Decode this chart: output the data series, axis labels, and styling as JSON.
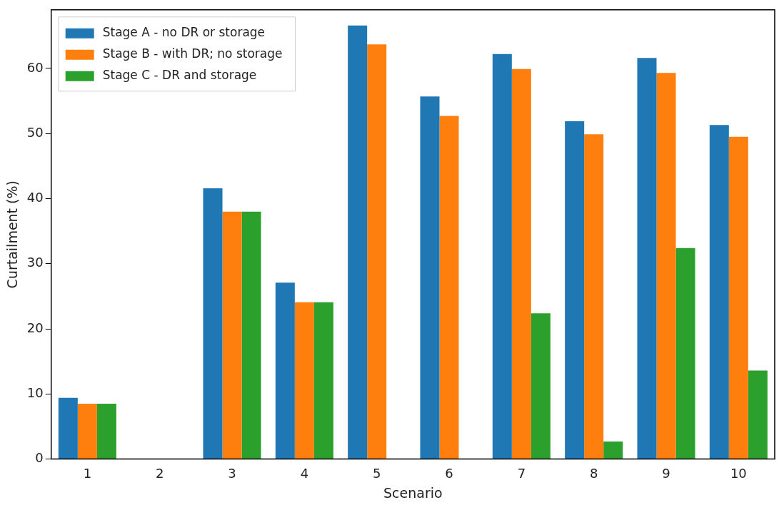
{
  "chart_data": {
    "type": "bar",
    "xlabel": "Scenario",
    "ylabel": "Curtailment (%)",
    "categories": [
      "1",
      "2",
      "3",
      "4",
      "5",
      "6",
      "7",
      "8",
      "9",
      "10"
    ],
    "series": [
      {
        "name": "Stage A - no DR or storage",
        "color": "#1f77b4",
        "values": [
          9.4,
          0,
          41.6,
          27.1,
          66.6,
          55.7,
          62.2,
          51.9,
          61.6,
          51.3
        ]
      },
      {
        "name": "Stage B - with DR; no storage",
        "color": "#ff7f0e",
        "values": [
          8.5,
          0,
          38.0,
          24.1,
          63.7,
          52.7,
          59.9,
          49.9,
          59.3,
          49.5
        ]
      },
      {
        "name": "Stage C - DR and storage",
        "color": "#2ca02c",
        "values": [
          8.5,
          0,
          38.0,
          24.1,
          0,
          0,
          22.4,
          2.7,
          32.4,
          13.6
        ]
      }
    ],
    "ylim": [
      0,
      69
    ],
    "yticks": [
      0,
      10,
      20,
      30,
      40,
      50,
      60
    ],
    "grid": false,
    "legend": "top left"
  }
}
